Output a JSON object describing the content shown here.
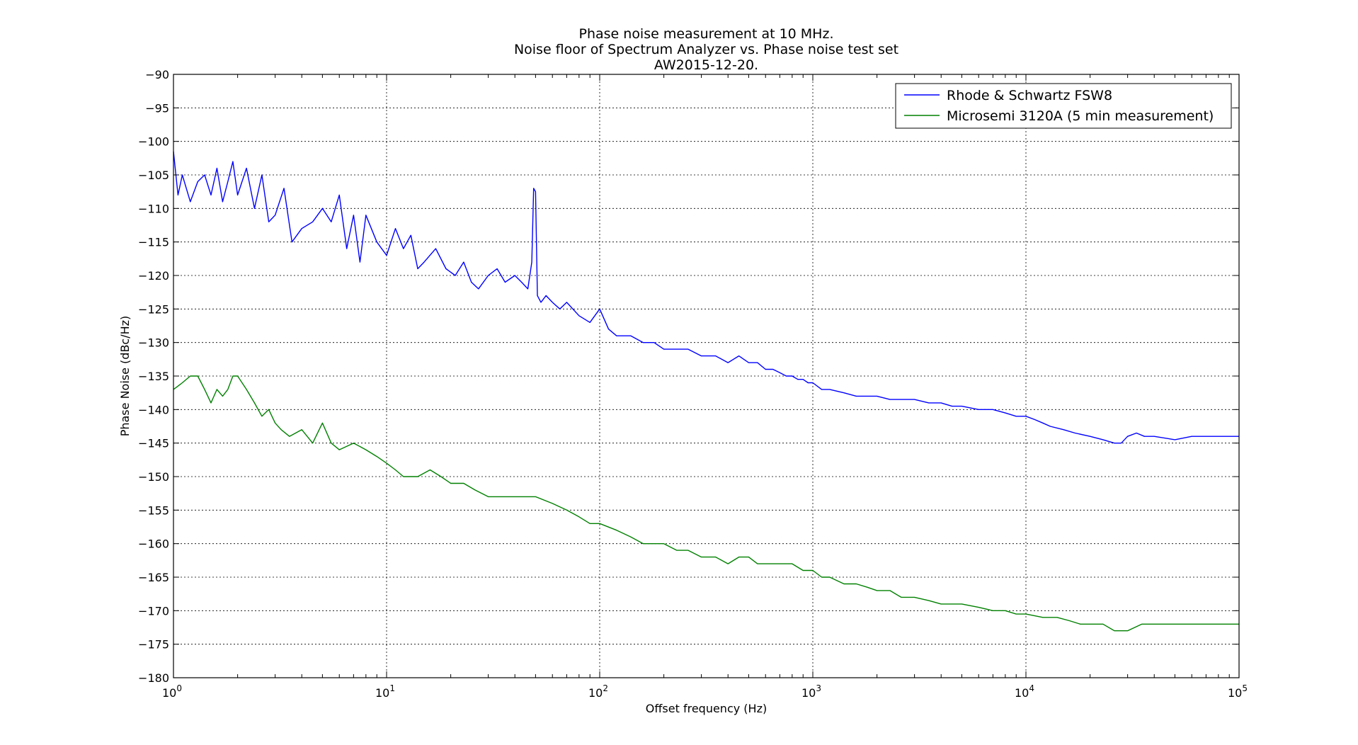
{
  "chart_data": {
    "type": "line",
    "title_lines": [
      "Phase noise measurement at 10 MHz.",
      "Noise floor of Spectrum Analyzer vs. Phase noise test set",
      "AW2015-12-20."
    ],
    "xlabel": "Offset frequency (Hz)",
    "ylabel": "Phase Noise (dBc/Hz)",
    "x_scale": "log",
    "xlim": [
      1,
      100000
    ],
    "ylim": [
      -180,
      -90
    ],
    "x_ticks": [
      {
        "value": 1,
        "base": "10",
        "exp": "0"
      },
      {
        "value": 10,
        "base": "10",
        "exp": "1"
      },
      {
        "value": 100,
        "base": "10",
        "exp": "2"
      },
      {
        "value": 1000,
        "base": "10",
        "exp": "3"
      },
      {
        "value": 10000,
        "base": "10",
        "exp": "4"
      },
      {
        "value": 100000,
        "base": "10",
        "exp": "5"
      }
    ],
    "y_ticks": [
      -90,
      -95,
      -100,
      -105,
      -110,
      -115,
      -120,
      -125,
      -130,
      -135,
      -140,
      -145,
      -150,
      -155,
      -160,
      -165,
      -170,
      -175,
      -180
    ],
    "y_tick_labels": [
      "−90",
      "−95",
      "−100",
      "−105",
      "−110",
      "−115",
      "−120",
      "−125",
      "−130",
      "−135",
      "−140",
      "−145",
      "−150",
      "−155",
      "−160",
      "−165",
      "−170",
      "−175",
      "−180"
    ],
    "grid": true,
    "legend_position": "top-right",
    "series": [
      {
        "name": "Rhode & Schwartz FSW8",
        "color": "#0000ff",
        "x": [
          1,
          1.05,
          1.1,
          1.2,
          1.3,
          1.4,
          1.5,
          1.6,
          1.7,
          1.8,
          1.9,
          2,
          2.2,
          2.4,
          2.6,
          2.8,
          3,
          3.3,
          3.6,
          4,
          4.5,
          5,
          5.5,
          6,
          6.5,
          7,
          7.5,
          8,
          9,
          10,
          11,
          12,
          13,
          14,
          15,
          17,
          19,
          21,
          23,
          25,
          27,
          30,
          33,
          36,
          40,
          43,
          46,
          48,
          49,
          50,
          51,
          53,
          56,
          60,
          65,
          70,
          80,
          90,
          100,
          110,
          120,
          140,
          160,
          180,
          200,
          230,
          260,
          300,
          350,
          400,
          450,
          500,
          550,
          600,
          650,
          700,
          750,
          800,
          850,
          900,
          950,
          1000,
          1100,
          1200,
          1400,
          1600,
          1800,
          2000,
          2300,
          2600,
          3000,
          3500,
          4000,
          4500,
          5000,
          6000,
          7000,
          8000,
          9000,
          10000,
          11000,
          12000,
          13000,
          15000,
          17000,
          20000,
          23000,
          26000,
          28000,
          30000,
          33000,
          36000,
          40000,
          50000,
          60000,
          70000,
          80000,
          90000,
          100000
        ],
        "y": [
          -101.5,
          -108,
          -105,
          -109,
          -106,
          -105,
          -108,
          -104,
          -109,
          -106,
          -103,
          -108,
          -104,
          -110,
          -105,
          -112,
          -111,
          -107,
          -115,
          -113,
          -112,
          -110,
          -112,
          -108,
          -116,
          -111,
          -118,
          -111,
          -115,
          -117,
          -113,
          -116,
          -114,
          -119,
          -118,
          -116,
          -119,
          -120,
          -118,
          -121,
          -122,
          -120,
          -119,
          -121,
          -120,
          -121,
          -122,
          -118,
          -107,
          -107.5,
          -123,
          -124,
          -123,
          -124,
          -125,
          -124,
          -126,
          -127,
          -125,
          -128,
          -129,
          -129,
          -130,
          -130,
          -131,
          -131,
          -131,
          -132,
          -132,
          -133,
          -132,
          -133,
          -133,
          -134,
          -134,
          -134.5,
          -135,
          -135,
          -135.5,
          -135.5,
          -136,
          -136,
          -137,
          -137,
          -137.5,
          -138,
          -138,
          -138,
          -138.5,
          -138.5,
          -138.5,
          -139,
          -139,
          -139.5,
          -139.5,
          -140,
          -140,
          -140.5,
          -141,
          -141,
          -141.5,
          -142,
          -142.5,
          -143,
          -143.5,
          -144,
          -144.5,
          -145,
          -145,
          -144,
          -143.5,
          -144,
          -144,
          -144.5,
          -144,
          -144,
          -144,
          -144,
          -144
        ]
      },
      {
        "name": "Microsemi 3120A (5 min measurement)",
        "color": "#008000",
        "x": [
          1,
          1.05,
          1.1,
          1.2,
          1.3,
          1.35,
          1.4,
          1.5,
          1.6,
          1.7,
          1.8,
          1.9,
          2,
          2.2,
          2.4,
          2.6,
          2.8,
          3,
          3.2,
          3.5,
          4,
          4.5,
          5,
          5.5,
          6,
          7,
          8,
          9,
          10,
          11,
          12,
          14,
          16,
          18,
          20,
          23,
          26,
          30,
          35,
          40,
          45,
          50,
          60,
          70,
          80,
          90,
          100,
          120,
          140,
          160,
          180,
          200,
          230,
          260,
          300,
          350,
          400,
          450,
          500,
          550,
          600,
          700,
          800,
          900,
          1000,
          1100,
          1200,
          1400,
          1600,
          1800,
          2000,
          2300,
          2600,
          3000,
          3500,
          4000,
          5000,
          6000,
          7000,
          8000,
          9000,
          10000,
          12000,
          14000,
          16000,
          18000,
          20000,
          23000,
          26000,
          30000,
          35000,
          40000,
          50000,
          60000,
          70000,
          80000,
          90000,
          100000
        ],
        "y": [
          -137,
          -136.5,
          -136,
          -135,
          -135,
          -136,
          -137,
          -139,
          -137,
          -138,
          -137,
          -135,
          -135,
          -137,
          -139,
          -141,
          -140,
          -142,
          -143,
          -144,
          -143,
          -145,
          -142,
          -145,
          -146,
          -145,
          -146,
          -147,
          -148,
          -149,
          -150,
          -150,
          -149,
          -150,
          -151,
          -151,
          -152,
          -153,
          -153,
          -153,
          -153,
          -153,
          -154,
          -155,
          -156,
          -157,
          -157,
          -158,
          -159,
          -160,
          -160,
          -160,
          -161,
          -161,
          -162,
          -162,
          -163,
          -162,
          -162,
          -163,
          -163,
          -163,
          -163,
          -164,
          -164,
          -165,
          -165,
          -166,
          -166,
          -166.5,
          -167,
          -167,
          -168,
          -168,
          -168.5,
          -169,
          -169,
          -169.5,
          -170,
          -170,
          -170.5,
          -170.5,
          -171,
          -171,
          -171.5,
          -172,
          -172,
          -172,
          -173,
          -173,
          -172,
          -172,
          -172,
          -172,
          -172,
          -172,
          -172,
          -172
        ]
      }
    ]
  }
}
